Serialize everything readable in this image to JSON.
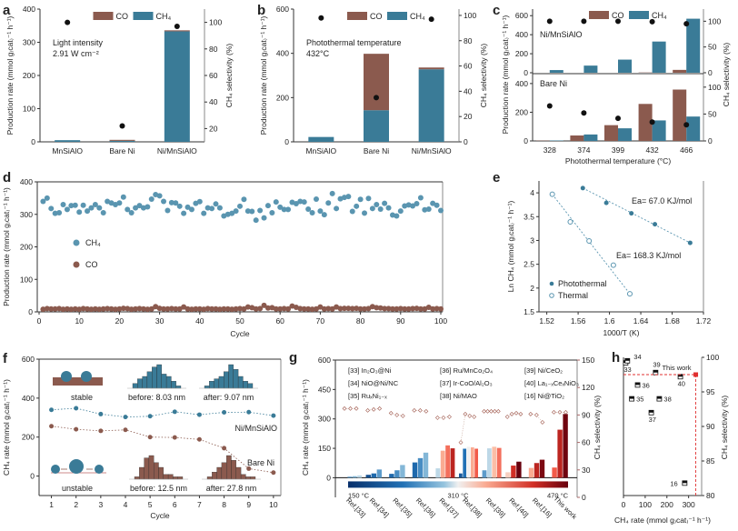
{
  "colors": {
    "co": "#8b5a4e",
    "ch4": "#3a7b97",
    "ch4_light": "#5a95b0",
    "ref_red": "#c0392b",
    "dash": "#e03030"
  },
  "chart_data": [
    {
      "id": "a",
      "panel_label": "a",
      "type": "bar",
      "categories": [
        "MnSiAlO",
        "Bare Ni",
        "Ni/MnSiAlO"
      ],
      "series": [
        {
          "name": "CO",
          "values": [
            0,
            3,
            3
          ]
        },
        {
          "name": "CH4",
          "values": [
            5,
            3,
            333
          ]
        }
      ],
      "selectivity": [
        100,
        22,
        97
      ],
      "annotation": [
        "Light intensity",
        "2.91 W cm⁻²"
      ],
      "legend": [
        "CO",
        "CH₄"
      ],
      "ylabel": "Production rate (mmol g₎cat₎⁻¹ h⁻¹)",
      "ylabel2": "CH₄ selectivity (%)",
      "ylim": [
        0,
        400
      ],
      "yticks": [
        0,
        100,
        200,
        300,
        400
      ],
      "y2lim": [
        10,
        110
      ],
      "y2ticks": [
        20,
        40,
        60,
        80,
        100
      ]
    },
    {
      "id": "b",
      "panel_label": "b",
      "type": "bar",
      "categories": [
        "MnSiAlO",
        "Bare Ni",
        "Ni/MnSiAlO"
      ],
      "series": [
        {
          "name": "CO",
          "values": [
            0,
            255,
            8
          ]
        },
        {
          "name": "CH4",
          "values": [
            22,
            143,
            328
          ]
        }
      ],
      "selectivity": [
        98,
        35,
        97
      ],
      "annotation": [
        "Photothermal temperature",
        "432°C"
      ],
      "legend": [
        "CO",
        "CH₄"
      ],
      "ylabel": "Production rate (mmol g₎cat₎⁻¹ h⁻¹)",
      "ylabel2": "CH₄ selectivity (%)",
      "ylim": [
        0,
        600
      ],
      "yticks": [
        0,
        200,
        400,
        600
      ],
      "y2lim": [
        0,
        105
      ],
      "y2ticks": [
        0,
        20,
        40,
        60,
        80,
        100
      ]
    },
    {
      "id": "c",
      "panel_label": "c",
      "type": "bar",
      "categories": [
        "328",
        "374",
        "399",
        "432",
        "466"
      ],
      "xlabel": "Photothermal temperature (°C)",
      "ylabel": "Production rate (mmol g₎cat₎⁻¹ h⁻¹)",
      "ylabel2": "CH₄ selectivity (%)",
      "legend": [
        "CO",
        "CH₄"
      ],
      "subplots": [
        {
          "name": "Ni/MnSiAlO",
          "co": [
            0,
            0,
            0,
            3,
            30
          ],
          "ch4": [
            28,
            75,
            138,
            328,
            568
          ],
          "selectivity": [
            100,
            100,
            100,
            99,
            95
          ],
          "ylim": [
            0,
            650
          ],
          "yticks": [
            0,
            200,
            400,
            600
          ],
          "y2ticks": [
            0,
            50,
            100
          ]
        },
        {
          "name": "Bare Ni",
          "co": [
            2,
            38,
            110,
            258,
            358
          ],
          "ch4": [
            3,
            45,
            88,
            143,
            170
          ],
          "selectivity": [
            65,
            52,
            42,
            35,
            30
          ],
          "ylim": [
            0,
            450
          ],
          "yticks": [
            0,
            200,
            400
          ],
          "y2ticks": [
            0,
            50,
            100
          ]
        }
      ]
    },
    {
      "id": "d",
      "panel_label": "d",
      "type": "scatter",
      "xlabel": "Cycle",
      "ylabel": "Production rate (mmol g₎cat₎⁻¹ h⁻¹)",
      "xlim": [
        0,
        100
      ],
      "xticks": [
        0,
        10,
        20,
        30,
        40,
        50,
        60,
        70,
        80,
        90,
        100
      ],
      "ylim": [
        0,
        400
      ],
      "yticks": [
        0,
        100,
        200,
        300,
        400
      ],
      "legend": [
        "CH₄",
        "CO"
      ],
      "series": [
        {
          "name": "CH4",
          "values": [
            340,
            350,
            318,
            303,
            305,
            330,
            315,
            327,
            328,
            307,
            328,
            310,
            320,
            330,
            320,
            305,
            340,
            335,
            330,
            335,
            353,
            315,
            305,
            320,
            327,
            320,
            323,
            347,
            361,
            357,
            340,
            312,
            336,
            335,
            325,
            303,
            322,
            315,
            334,
            339,
            303,
            320,
            318,
            332,
            320,
            295,
            300,
            303,
            310,
            325,
            346,
            310,
            309,
            282,
            312,
            289,
            327,
            305,
            338,
            322,
            315,
            315,
            337,
            333,
            340,
            338,
            316,
            305,
            347,
            310,
            299,
            335,
            364,
            318,
            348,
            352,
            355,
            309,
            325,
            346,
            304,
            349,
            318,
            330,
            316,
            334,
            320,
            298,
            295,
            310,
            326,
            329,
            326,
            333,
            351,
            314,
            316,
            334,
            328,
            312
          ]
        },
        {
          "name": "CO",
          "values": [
            8,
            10,
            9,
            9,
            10,
            8,
            9,
            8,
            9,
            8,
            10,
            9,
            8,
            9,
            8,
            9,
            10,
            9,
            8,
            9,
            11,
            10,
            8,
            9,
            10,
            9,
            8,
            9,
            16,
            11,
            9,
            9,
            10,
            9,
            9,
            15,
            9,
            8,
            9,
            9,
            8,
            10,
            9,
            9,
            8,
            9,
            9,
            8,
            9,
            10,
            9,
            15,
            13,
            9,
            10,
            20,
            12,
            13,
            9,
            9,
            10,
            9,
            18,
            14,
            10,
            9,
            9,
            8,
            9,
            15,
            9,
            10,
            9,
            15,
            10,
            11,
            11,
            10,
            11,
            9,
            9,
            10,
            16,
            13,
            12,
            10,
            10,
            9,
            9,
            10,
            9,
            9,
            10,
            11,
            9,
            9,
            14,
            9,
            10,
            9
          ]
        }
      ]
    },
    {
      "id": "e",
      "panel_label": "e",
      "type": "scatter",
      "xlabel": "1000/T (K)",
      "ylabel": "Ln CH₄ (mmol g₎cat₎⁻¹ h⁻¹)",
      "xlim": [
        1.51,
        1.72
      ],
      "xticks": [
        1.52,
        1.56,
        1.6,
        1.64,
        1.68,
        1.72
      ],
      "ylim": [
        1.5,
        4.25
      ],
      "yticks": [
        1.5,
        2.0,
        2.5,
        3.0,
        3.5,
        4.0
      ],
      "series": [
        {
          "name": "Photothermal",
          "x": [
            1.566,
            1.596,
            1.628,
            1.658,
            1.703
          ],
          "y": [
            4.1,
            3.79,
            3.57,
            3.34,
            2.95
          ],
          "annotation": "Ea= 67.0 KJ/mol"
        },
        {
          "name": "Thermal",
          "x": [
            1.527,
            1.55,
            1.574,
            1.605,
            1.626
          ],
          "y": [
            3.97,
            3.39,
            2.99,
            2.48,
            1.88
          ],
          "annotation": "Ea= 168.3 KJ/mol"
        }
      ]
    },
    {
      "id": "f",
      "panel_label": "f",
      "type": "line",
      "xlabel": "Cycle",
      "ylabel": "CH₄ rate (mmol g₎cat₎⁻¹ h⁻¹)",
      "xlim": [
        0.5,
        10.3
      ],
      "xticks": [
        1,
        2,
        3,
        4,
        5,
        6,
        7,
        8,
        9,
        10
      ],
      "ylim": [
        -100,
        600
      ],
      "yticks": [
        0,
        200,
        400,
        600
      ],
      "series": [
        {
          "name": "Ni/MnSiAlO",
          "x": [
            1,
            2,
            3,
            4,
            5,
            6,
            7,
            8,
            9,
            10
          ],
          "values": [
            340,
            348,
            318,
            303,
            307,
            330,
            315,
            327,
            328,
            310
          ]
        },
        {
          "name": "Bare Ni",
          "x": [
            1,
            2,
            3,
            4,
            5,
            6,
            7,
            8,
            9,
            10
          ],
          "values": [
            256,
            240,
            232,
            237,
            200,
            198,
            188,
            143,
            38,
            18
          ]
        }
      ],
      "insets": {
        "stable_label": "stable",
        "unstable_label": "unstable",
        "hist": [
          {
            "label": "before: 8.03 nm",
            "color": "ch4",
            "bins": [
              2,
              4,
              5,
              7,
              9,
              10,
              6,
              5,
              3,
              1
            ]
          },
          {
            "label": "after: 9.07 nm",
            "color": "ch4",
            "bins": [
              1,
              3,
              4,
              5,
              7,
              10,
              8,
              5,
              3,
              2
            ]
          },
          {
            "label": "before: 12.5 nm",
            "color": "co",
            "bins": [
              1,
              5,
              9,
              10,
              7,
              5,
              2,
              2,
              1,
              1
            ]
          },
          {
            "label": "after: 27.8 nm",
            "color": "co",
            "bins": [
              1,
              3,
              5,
              7,
              10,
              8,
              5,
              2,
              1,
              1
            ]
          }
        ]
      }
    },
    {
      "id": "g",
      "panel_label": "g",
      "type": "bar",
      "ylabel": "CH₄ rate (mmol g₎cat₎⁻¹ h⁻¹)",
      "ylabel2": "CH₄ selectivity (%)",
      "ylim": [
        -100,
        600
      ],
      "yticks": [
        0,
        150,
        300,
        450,
        600
      ],
      "y2lim": [
        0,
        150
      ],
      "y2ticks": [
        0,
        30,
        60,
        90,
        120,
        150
      ],
      "categories": [
        "Ref.[33]",
        "Ref.[34]",
        "Ref.[35]",
        "Ref.[36]",
        "Ref.[37]",
        "Ref.[38]",
        "Ref.[39]",
        "Ref.[40]",
        "Ref.[16]",
        "This work"
      ],
      "legend_entries": [
        "[33] In₂O₃@Ni",
        "[34] NiO@Ni/NC",
        "[35] RuₓNi₁₋ₓ",
        "[36] Ru/MnCo₂O₄",
        "[37] Ir-CoO/Al₂O₃",
        "[38] Ni/MAO",
        "[39] Ni/CeO₂",
        "[40] La₁₋ₓCeₓNiO₃",
        "[16] Ni@TiO₂"
      ],
      "colorbar_labels": [
        "150 °C",
        "310 °C",
        "470 °C"
      ],
      "groups": [
        {
          "rates": [
            0,
            5,
            8,
            12
          ],
          "temps": [
            220,
            250,
            280,
            300
          ],
          "selectivity": [
            97,
            97,
            97
          ]
        },
        {
          "rates": [
            15,
            22,
            42
          ],
          "temps": [
            190,
            220,
            260
          ],
          "selectivity": [
            95,
            96,
            97
          ]
        },
        {
          "rates": [
            20,
            38,
            65
          ],
          "temps": [
            220,
            250,
            280
          ],
          "selectivity": [
            92,
            90,
            89
          ]
        },
        {
          "rates": [
            78,
            100,
            128
          ],
          "temps": [
            220,
            250,
            280
          ],
          "selectivity": [
            95,
            95,
            94
          ]
        },
        {
          "rates": [
            48,
            138,
            165,
            150
          ],
          "temps": [
            300,
            350,
            380,
            430
          ],
          "selectivity": [
            87,
            87,
            88
          ]
        },
        {
          "rates": [
            22,
            148,
            158,
            155,
            148
          ],
          "temps": [
            200,
            230,
            310,
            350,
            390
          ],
          "selectivity": [
            60,
            91,
            89,
            88
          ]
        },
        {
          "rates": [
            38,
            150,
            158,
            152
          ],
          "temps": [
            260,
            300,
            340,
            380
          ],
          "selectivity": [
            94,
            94,
            94,
            94,
            94
          ]
        },
        {
          "rates": [
            28,
            62,
            82
          ],
          "temps": [
            330,
            420,
            470
          ],
          "selectivity": [
            88,
            91,
            92,
            91
          ]
        },
        {
          "rates": [
            50,
            75,
            92
          ],
          "temps": [
            350,
            430,
            460
          ],
          "selectivity": [
            91,
            90,
            82
          ]
        },
        {
          "rates": [
            52,
            245,
            325
          ],
          "temps": [
            390,
            430,
            466
          ],
          "selectivity": [
            93,
            93,
            93
          ]
        }
      ]
    },
    {
      "id": "h",
      "panel_label": "h",
      "type": "scatter",
      "xlabel": "CH₄ rate (mmol g₎cat₎⁻¹ h⁻¹)",
      "ylabel": "CH₄ selectivity (%)",
      "xlim": [
        0,
        360
      ],
      "xticks": [
        0,
        100,
        200,
        300
      ],
      "ylim": [
        80,
        100
      ],
      "yticks": [
        80,
        85,
        90,
        95,
        100
      ],
      "points": [
        {
          "label": "33",
          "x": 10,
          "y": 99.2
        },
        {
          "label": "34",
          "x": 18,
          "y": 99.5
        },
        {
          "label": "35",
          "x": 38,
          "y": 94
        },
        {
          "label": "36",
          "x": 65,
          "y": 96
        },
        {
          "label": "37",
          "x": 128,
          "y": 92
        },
        {
          "label": "38",
          "x": 165,
          "y": 94
        },
        {
          "label": "39",
          "x": 148,
          "y": 97.8
        },
        {
          "label": "40",
          "x": 262,
          "y": 97.2
        },
        {
          "label": "16",
          "x": 282,
          "y": 81.8
        },
        {
          "label": "This work",
          "x": 333,
          "y": 97.5,
          "highlight": true
        }
      ]
    }
  ]
}
